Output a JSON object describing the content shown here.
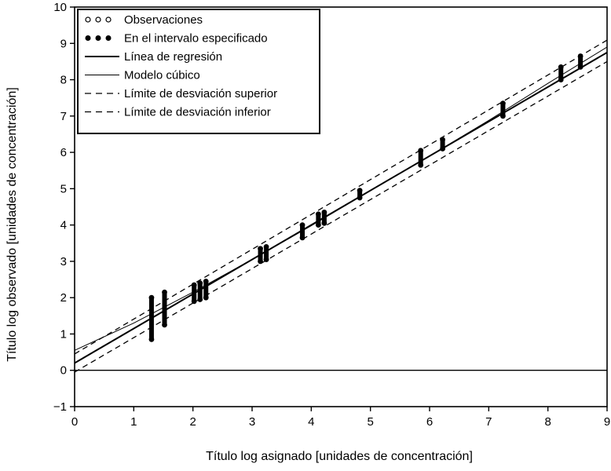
{
  "chart_data": {
    "type": "scatter",
    "xlabel": "Título log asignado [unidades de concentración]",
    "ylabel": "Título log observado [unidades de concentración]",
    "xlim": [
      0,
      9
    ],
    "ylim": [
      -1,
      10
    ],
    "x_ticks": [
      "0",
      "1",
      "2",
      "3",
      "4",
      "5",
      "6",
      "7",
      "8",
      "9"
    ],
    "y_ticks": [
      "−1",
      "0",
      "1",
      "2",
      "3",
      "4",
      "5",
      "6",
      "7",
      "8",
      "9",
      "10"
    ],
    "grid": false,
    "legend_position": "top-left",
    "reference_line_y": 0,
    "legend": [
      {
        "label": "Observaciones",
        "marker": "open-circle"
      },
      {
        "label": "En el intervalo especificado",
        "marker": "filled-circle"
      },
      {
        "label": "Línea de regresión",
        "line": "solid"
      },
      {
        "label": "Modelo cúbico",
        "line": "solid-thin"
      },
      {
        "label": "Límite de desviación superior",
        "line": "dashed"
      },
      {
        "label": "Límite de desviación inferior",
        "line": "dashed"
      }
    ],
    "in_range_points": [
      {
        "x": 1.3,
        "y_min": 0.85,
        "y_max": 2.0
      },
      {
        "x": 1.52,
        "y_min": 1.25,
        "y_max": 2.15
      },
      {
        "x": 2.02,
        "y_min": 1.9,
        "y_max": 2.35
      },
      {
        "x": 2.12,
        "y_min": 1.95,
        "y_max": 2.4
      },
      {
        "x": 2.22,
        "y_min": 2.0,
        "y_max": 2.45
      },
      {
        "x": 3.14,
        "y_min": 3.0,
        "y_max": 3.35
      },
      {
        "x": 3.24,
        "y_min": 3.05,
        "y_max": 3.4
      },
      {
        "x": 3.85,
        "y_min": 3.65,
        "y_max": 4.0
      },
      {
        "x": 4.12,
        "y_min": 4.0,
        "y_max": 4.3
      },
      {
        "x": 4.22,
        "y_min": 4.05,
        "y_max": 4.35
      },
      {
        "x": 4.82,
        "y_min": 4.75,
        "y_max": 4.95
      },
      {
        "x": 5.85,
        "y_min": 5.65,
        "y_max": 6.05
      },
      {
        "x": 6.22,
        "y_min": 6.1,
        "y_max": 6.35
      },
      {
        "x": 7.24,
        "y_min": 7.0,
        "y_max": 7.35
      },
      {
        "x": 8.22,
        "y_min": 8.0,
        "y_max": 8.35
      },
      {
        "x": 8.55,
        "y_min": 8.35,
        "y_max": 8.65
      }
    ],
    "regression_line": {
      "intercept": 0.2,
      "slope": 0.95
    },
    "cubic_model": {
      "x": [
        0,
        1,
        2,
        3,
        4,
        5,
        6,
        7,
        8,
        9
      ],
      "y": [
        0.55,
        1.3,
        2.15,
        3.05,
        3.98,
        4.95,
        5.9,
        6.88,
        7.9,
        8.9
      ]
    },
    "upper_limit": {
      "intercept": 0.45,
      "slope": 0.96
    },
    "lower_limit": {
      "intercept": -0.05,
      "slope": 0.95
    }
  }
}
